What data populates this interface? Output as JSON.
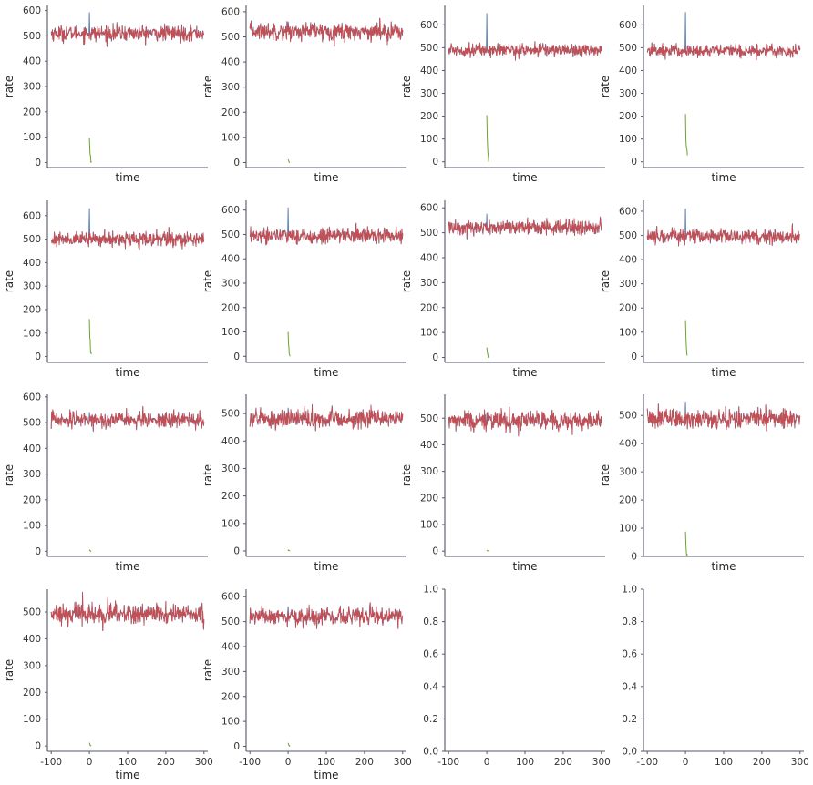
{
  "figure": {
    "xlabel": "time",
    "ylabel": "rate",
    "colors": {
      "blue": "#4C72B0",
      "green": "#6BA32E",
      "red": "#C44E52",
      "axis": "#555566"
    }
  },
  "chart_data": [
    {
      "type": "line",
      "xlabel": "time",
      "ylabel": "rate",
      "xlim": [
        -110,
        310
      ],
      "ylim": [
        -20,
        620
      ],
      "yticks": [
        0,
        100,
        200,
        300,
        400,
        500,
        600
      ],
      "show_xticks": false,
      "red_mean": 510,
      "red_sd": 15,
      "blue_spike": 592,
      "green_start": 98,
      "x": {
        "start": -100,
        "end": 300,
        "step": 1
      },
      "series": []
    },
    {
      "type": "line",
      "xlabel": "time",
      "ylabel": "rate",
      "xlim": [
        -110,
        310
      ],
      "ylim": [
        -20,
        625
      ],
      "yticks": [
        0,
        100,
        200,
        300,
        400,
        500,
        600
      ],
      "show_xticks": false,
      "red_mean": 522,
      "red_sd": 17,
      "blue_spike": 560,
      "green_start": 12,
      "x": {
        "start": -100,
        "end": 300,
        "step": 1
      },
      "series": []
    },
    {
      "type": "line",
      "xlabel": "time",
      "ylabel": "rate",
      "xlim": [
        -110,
        310
      ],
      "ylim": [
        -25,
        685
      ],
      "yticks": [
        0,
        100,
        200,
        300,
        400,
        500,
        600
      ],
      "show_xticks": false,
      "red_mean": 490,
      "red_sd": 14,
      "blue_spike": 650,
      "green_start": 205,
      "x": {
        "start": -100,
        "end": 300,
        "step": 1
      },
      "series": []
    },
    {
      "type": "line",
      "xlabel": "time",
      "ylabel": "rate",
      "xlim": [
        -110,
        310
      ],
      "ylim": [
        -25,
        685
      ],
      "yticks": [
        0,
        100,
        200,
        300,
        400,
        500,
        600
      ],
      "show_xticks": false,
      "red_mean": 487,
      "red_sd": 14,
      "blue_spike": 655,
      "green_start": 210,
      "x": {
        "start": -100,
        "end": 300,
        "step": 1
      },
      "series": []
    },
    {
      "type": "line",
      "xlabel": "time",
      "ylabel": "rate",
      "xlim": [
        -110,
        310
      ],
      "ylim": [
        -25,
        665
      ],
      "yticks": [
        0,
        100,
        200,
        300,
        400,
        500,
        600
      ],
      "show_xticks": false,
      "red_mean": 500,
      "red_sd": 15,
      "blue_spike": 630,
      "green_start": 160,
      "x": {
        "start": -100,
        "end": 300,
        "step": 1
      },
      "series": []
    },
    {
      "type": "line",
      "xlabel": "time",
      "ylabel": "rate",
      "xlim": [
        -110,
        310
      ],
      "ylim": [
        -25,
        640
      ],
      "yticks": [
        0,
        100,
        200,
        300,
        400,
        500,
        600
      ],
      "show_xticks": false,
      "red_mean": 495,
      "red_sd": 16,
      "blue_spike": 610,
      "green_start": 100,
      "x": {
        "start": -100,
        "end": 300,
        "step": 1
      },
      "series": []
    },
    {
      "type": "line",
      "xlabel": "time",
      "ylabel": "rate",
      "xlim": [
        -110,
        310
      ],
      "ylim": [
        -20,
        630
      ],
      "yticks": [
        0,
        100,
        200,
        300,
        400,
        500,
        600
      ],
      "show_xticks": false,
      "red_mean": 522,
      "red_sd": 16,
      "blue_spike": 575,
      "green_start": 40,
      "x": {
        "start": -100,
        "end": 300,
        "step": 1
      },
      "series": []
    },
    {
      "type": "line",
      "xlabel": "time",
      "ylabel": "rate",
      "xlim": [
        -110,
        310
      ],
      "ylim": [
        -25,
        645
      ],
      "yticks": [
        0,
        100,
        200,
        300,
        400,
        500,
        600
      ],
      "show_xticks": false,
      "red_mean": 497,
      "red_sd": 16,
      "blue_spike": 610,
      "green_start": 150,
      "x": {
        "start": -100,
        "end": 300,
        "step": 1
      },
      "series": []
    },
    {
      "type": "line",
      "xlabel": "time",
      "ylabel": "rate",
      "xlim": [
        -110,
        310
      ],
      "ylim": [
        -20,
        610
      ],
      "yticks": [
        0,
        100,
        200,
        300,
        400,
        500,
        600
      ],
      "show_xticks": false,
      "red_mean": 512,
      "red_sd": 15,
      "blue_spike": 540,
      "green_start": 6,
      "x": {
        "start": -100,
        "end": 300,
        "step": 1
      },
      "series": []
    },
    {
      "type": "line",
      "xlabel": "time",
      "ylabel": "rate",
      "xlim": [
        -110,
        310
      ],
      "ylim": [
        -20,
        570
      ],
      "yticks": [
        0,
        100,
        200,
        300,
        400,
        500
      ],
      "show_xticks": false,
      "red_mean": 482,
      "red_sd": 16,
      "blue_spike": 520,
      "green_start": 5,
      "x": {
        "start": -100,
        "end": 300,
        "step": 1
      },
      "series": []
    },
    {
      "type": "line",
      "xlabel": "time",
      "ylabel": "rate",
      "xlim": [
        -110,
        310
      ],
      "ylim": [
        -20,
        590
      ],
      "yticks": [
        0,
        100,
        200,
        300,
        400,
        500
      ],
      "show_xticks": false,
      "red_mean": 490,
      "red_sd": 18,
      "blue_spike": 520,
      "green_start": 4,
      "x": {
        "start": -100,
        "end": 300,
        "step": 1
      },
      "series": []
    },
    {
      "type": "line",
      "xlabel": "time",
      "ylabel": "rate",
      "xlim": [
        -110,
        310
      ],
      "ylim": [
        0,
        575
      ],
      "yticks": [
        0,
        100,
        200,
        300,
        400,
        500
      ],
      "show_xticks": false,
      "red_mean": 487,
      "red_sd": 18,
      "blue_spike": 548,
      "green_start": 88,
      "x": {
        "start": -100,
        "end": 300,
        "step": 1
      },
      "series": []
    },
    {
      "type": "line",
      "xlabel": "time",
      "ylabel": "rate",
      "xlim": [
        -110,
        310
      ],
      "ylim": [
        -20,
        585
      ],
      "yticks": [
        0,
        100,
        200,
        300,
        400,
        500
      ],
      "show_xticks": true,
      "xticks": [
        -100,
        0,
        100,
        200,
        300
      ],
      "red_mean": 493,
      "red_sd": 18,
      "blue_spike": 520,
      "green_start": 12,
      "x": {
        "start": -100,
        "end": 300,
        "step": 1
      },
      "series": []
    },
    {
      "type": "line",
      "xlabel": "time",
      "ylabel": "rate",
      "xlim": [
        -110,
        310
      ],
      "ylim": [
        -20,
        630
      ],
      "yticks": [
        0,
        100,
        200,
        300,
        400,
        500,
        600
      ],
      "show_xticks": true,
      "xticks": [
        -100,
        0,
        100,
        200,
        300
      ],
      "red_mean": 520,
      "red_sd": 18,
      "blue_spike": 560,
      "green_start": 14,
      "x": {
        "start": -100,
        "end": 300,
        "step": 1
      },
      "series": []
    },
    {
      "type": "empty",
      "xlim": [
        -110,
        310
      ],
      "ylim": [
        0,
        1
      ],
      "yticks": [
        "0.0",
        "0.2",
        "0.4",
        "0.6",
        "0.8",
        "1.0"
      ],
      "show_xticks": true,
      "xticks": [
        -100,
        0,
        100,
        200,
        300
      ]
    },
    {
      "type": "empty",
      "xlim": [
        -110,
        310
      ],
      "ylim": [
        0,
        1
      ],
      "yticks": [
        "0.0",
        "0.2",
        "0.4",
        "0.6",
        "0.8",
        "1.0"
      ],
      "show_xticks": true,
      "xticks": [
        -100,
        0,
        100,
        200,
        300
      ]
    }
  ]
}
